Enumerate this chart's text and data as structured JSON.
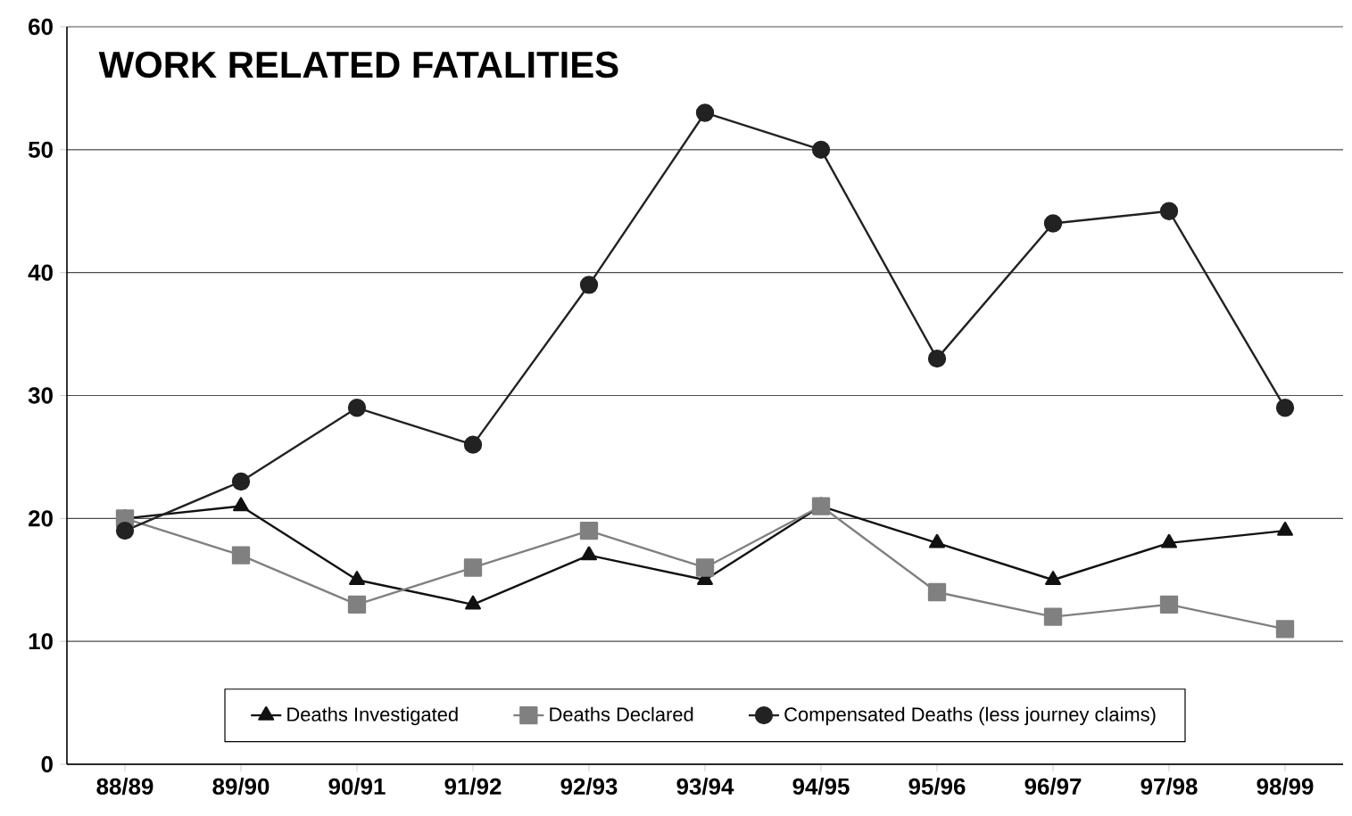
{
  "chart_data": {
    "type": "line",
    "title": "WORK RELATED FATALITIES",
    "categories": [
      "88/89",
      "89/90",
      "90/91",
      "91/92",
      "92/93",
      "93/94",
      "94/95",
      "95/96",
      "96/97",
      "97/98",
      "98/99"
    ],
    "series": [
      {
        "name": "Deaths Investigated",
        "color": "#111111",
        "marker": "triangle",
        "values": [
          20,
          21,
          15,
          13,
          17,
          15,
          21,
          18,
          15,
          18,
          19
        ]
      },
      {
        "name": "Deaths Declared",
        "color": "#808080",
        "marker": "square",
        "values": [
          20,
          17,
          13,
          16,
          19,
          16,
          21,
          14,
          12,
          13,
          11
        ]
      },
      {
        "name": "Compensated Deaths (less journey claims)",
        "color": "#222222",
        "marker": "circle",
        "values": [
          19,
          23,
          29,
          26,
          39,
          53,
          50,
          33,
          44,
          45,
          29
        ]
      }
    ],
    "ylim": [
      0,
      60
    ],
    "yticks": [
      0,
      10,
      20,
      30,
      40,
      50,
      60
    ],
    "grid": "y",
    "legend": "bottom",
    "line_style": "solid"
  }
}
